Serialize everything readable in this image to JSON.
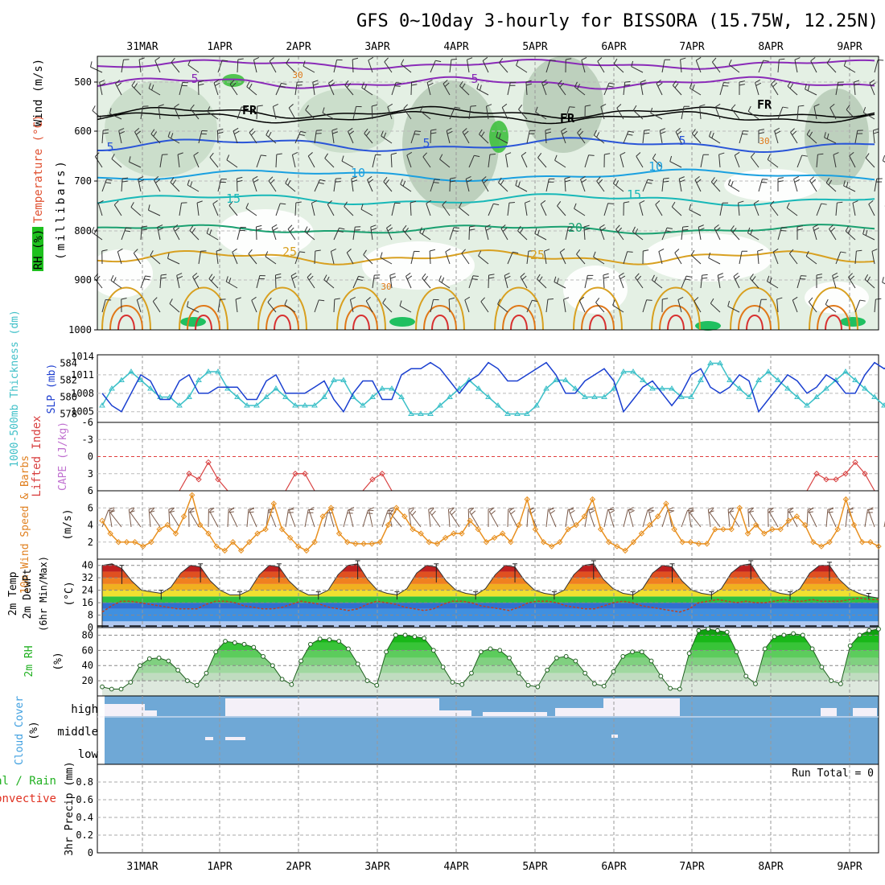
{
  "title": "GFS 0~10day 3-hourly for BISSORA (15.75W, 12.25N)",
  "days": [
    "31MAR",
    "1APR",
    "2APR",
    "3APR",
    "4APR",
    "5APR",
    "6APR",
    "7APR",
    "8APR",
    "9APR"
  ],
  "colors": {
    "purple": "#8a2bb8",
    "black": "#000000",
    "blue5": "#2a55d8",
    "blue10": "#1aa0e0",
    "teal15": "#18b8b8",
    "green20": "#1aa070",
    "orange25": "#d8a020",
    "orange30": "#e07818",
    "red35": "#d83030",
    "slp": "#1a3fd0",
    "thickness": "#3cc0c8",
    "lifted": "#d84040",
    "wind10m": "#e89020",
    "cloud": "#6fa8d6",
    "cloud_clear": "#f4f0f8",
    "rh_green": "#18c018"
  },
  "panels": {
    "upper": {
      "ylabel_wind": "Wind (m/s)",
      "ylabel_temp": "Temperature (°C)",
      "ylabel_rh": "RH (%)",
      "ylabel_mb": "(millibars)",
      "yticks": [
        "500",
        "600",
        "700",
        "800",
        "900",
        "1000"
      ],
      "contour_labels": [
        {
          "text": "5",
          "color": "purple"
        },
        {
          "text": "5",
          "color": "purple"
        },
        {
          "text": "FR",
          "color": "black"
        },
        {
          "text": "FR",
          "color": "black"
        },
        {
          "text": "FR",
          "color": "black"
        },
        {
          "text": "5",
          "color": "blue5"
        },
        {
          "text": "5",
          "color": "blue5"
        },
        {
          "text": "5",
          "color": "blue5"
        },
        {
          "text": "10",
          "color": "blue10"
        },
        {
          "text": "10",
          "color": "blue10"
        },
        {
          "text": "15",
          "color": "teal15"
        },
        {
          "text": "15",
          "color": "teal15"
        },
        {
          "text": "20",
          "color": "green20"
        },
        {
          "text": "25",
          "color": "orange25"
        },
        {
          "text": "25",
          "color": "orange25"
        },
        {
          "text": "30",
          "color": "orange30"
        },
        {
          "text": "30",
          "color": "orange30"
        },
        {
          "text": "30",
          "color": "orange30"
        }
      ]
    },
    "slp": {
      "ylabel_thickness": "1000-500mb Thickness (dm)",
      "ylabel_slp": "SLP (mb)",
      "left_ticks": [
        "584",
        "582",
        "580",
        "578"
      ],
      "right_ticks": [
        "1014",
        "1011",
        "1008",
        "1005"
      ]
    },
    "lifted": {
      "ylabel_li": "Lifted Index",
      "ylabel_cape": "CAPE (J/kg)",
      "ticks": [
        "-6",
        "-3",
        "0",
        "3",
        "6"
      ]
    },
    "wind10m": {
      "ylabel": "10m Wind Speed & Barbs",
      "unit": "(m/s)",
      "ticks": [
        "6",
        "4",
        "2"
      ]
    },
    "temp2m": {
      "ylabel": "2m Temp",
      "ylabel2": "2m DewPt",
      "ylabel3": "(6hr Min/Max)",
      "unit": "(°C)",
      "ticks": [
        "40",
        "32",
        "24",
        "16",
        "8",
        "0"
      ]
    },
    "rh2m": {
      "ylabel": "2m RH",
      "unit": "(%)",
      "ticks": [
        "80",
        "60",
        "40",
        "20"
      ]
    },
    "cloud": {
      "ylabel": "Cloud Cover",
      "unit": "(%)",
      "levels": [
        "high",
        "middle",
        "low"
      ]
    },
    "precip": {
      "ylabel_total": "Total / Rain",
      "ylabel_conv": "Convective",
      "ylabel_unit": "3hr Precip (mm)",
      "run_total": "Run Total = 0",
      "ticks": [
        "0.8",
        "0.6",
        "0.4",
        "0.2",
        "0"
      ]
    }
  },
  "chart_data": [
    {
      "type": "line",
      "title": "1000-500mb Thickness (dm) / SLP (mb)",
      "x": "3-hourly, 31MAR to 9APR",
      "series": [
        {
          "name": "SLP (mb)",
          "axis": "right",
          "ylim": [
            1003,
            1014
          ],
          "values": [
            1008,
            1006,
            1005,
            1008,
            1011,
            1010,
            1007,
            1007,
            1010,
            1011,
            1008,
            1008,
            1009,
            1009,
            1009,
            1007,
            1007,
            1010,
            1011,
            1008,
            1008,
            1008,
            1009,
            1010,
            1007,
            1005,
            1008,
            1010,
            1010,
            1007,
            1007,
            1011,
            1012,
            1012,
            1013,
            1012,
            1010,
            1008,
            1010,
            1011,
            1013,
            1012,
            1010,
            1010,
            1011,
            1012,
            1013,
            1011,
            1008,
            1008,
            1010,
            1011,
            1012,
            1010,
            1005,
            1007,
            1009,
            1010,
            1008,
            1006,
            1008,
            1011,
            1012,
            1009,
            1008,
            1009,
            1011,
            1010,
            1005,
            1007,
            1009,
            1011,
            1010,
            1008,
            1009,
            1011,
            1010,
            1008,
            1008,
            1011,
            1013,
            1012,
            1013
          ]
        },
        {
          "name": "1000-500mb Thickness (dm)",
          "axis": "left",
          "ylim": [
            577,
            585
          ],
          "values": [
            579,
            581,
            582,
            583,
            582,
            581,
            580,
            580,
            579,
            580,
            582,
            583,
            583,
            581,
            580,
            579,
            579,
            580,
            581,
            580,
            579,
            579,
            579,
            580,
            582,
            582,
            580,
            579,
            580,
            581,
            581,
            580,
            578,
            578,
            578,
            579,
            580,
            581,
            582,
            581,
            580,
            579,
            578,
            578,
            578,
            579,
            581,
            582,
            582,
            581,
            580,
            580,
            580,
            581,
            583,
            583,
            582,
            581,
            581,
            581,
            580,
            580,
            582,
            584,
            584,
            582,
            581,
            580,
            582,
            583,
            582,
            581,
            580,
            579,
            580,
            581,
            582,
            583,
            582,
            581,
            580,
            579,
            578,
            578
          ]
        }
      ]
    },
    {
      "type": "line",
      "title": "Lifted Index",
      "ylim": [
        6,
        -6
      ],
      "x": "3-hourly, 31MAR to 9APR",
      "series": [
        {
          "name": "Lifted Index",
          "values": [
            6,
            6,
            6,
            6,
            6,
            6,
            6,
            6,
            6,
            3,
            4,
            1,
            4,
            6,
            6,
            6,
            6,
            6,
            6,
            6,
            3,
            3,
            6,
            6,
            6,
            6,
            6,
            6,
            4,
            3,
            6,
            6,
            6,
            6,
            6,
            6,
            6,
            6,
            6,
            6,
            6,
            6,
            6,
            6,
            6,
            6,
            6,
            6,
            6,
            6,
            6,
            6,
            6,
            6,
            6,
            6,
            6,
            6,
            6,
            6,
            6,
            6,
            6,
            6,
            6,
            6,
            6,
            6,
            6,
            6,
            6,
            6,
            6,
            6,
            3,
            4,
            4,
            3,
            1,
            3,
            6,
            6,
            6
          ]
        }
      ]
    },
    {
      "type": "line",
      "title": "10m Wind Speed & Barbs (m/s)",
      "ylim": [
        0,
        8
      ],
      "x": "3-hourly, 31MAR to 9APR",
      "series": [
        {
          "name": "10m Wind Speed",
          "values": [
            4.5,
            3,
            2,
            2,
            2,
            1.5,
            2,
            3.5,
            4,
            3,
            5,
            7.5,
            4,
            3,
            1.5,
            1,
            2,
            1,
            2,
            3,
            3.5,
            6.5,
            3.5,
            2.5,
            1.5,
            1,
            2,
            5,
            6,
            3,
            2,
            1.8,
            1.8,
            1.8,
            2,
            4,
            6,
            5,
            3.5,
            3,
            2,
            1.8,
            2.5,
            3,
            3,
            4.5,
            3.5,
            2,
            2.5,
            3,
            2,
            4,
            7,
            3.5,
            2,
            1.5,
            2,
            3.5,
            4,
            5,
            7,
            3.5,
            2,
            1.5,
            1,
            2,
            3,
            4,
            5,
            6.5,
            3.5,
            2,
            2,
            1.8,
            1.8,
            3.5,
            3.5,
            3.5,
            6,
            3,
            4,
            3,
            3.5,
            3.5,
            4.5,
            5,
            4,
            2,
            1.5,
            2,
            3.5,
            7,
            4,
            2,
            2,
            1.5
          ]
        }
      ]
    },
    {
      "type": "area",
      "title": "2m Temp / 2m DewPt (°C)",
      "ylim": [
        0,
        44
      ],
      "x": "3-hourly, 31MAR to 9APR",
      "series": [
        {
          "name": "2m Temp",
          "values": [
            40,
            41,
            38,
            30,
            24,
            23,
            22,
            26,
            35,
            40,
            39,
            30,
            24,
            21,
            21,
            24,
            34,
            40,
            39,
            30,
            24,
            21,
            21,
            24,
            34,
            40,
            41,
            31,
            24,
            22,
            21,
            25,
            35,
            40,
            39,
            30,
            24,
            22,
            21,
            25,
            34,
            40,
            39,
            30,
            24,
            22,
            21,
            24,
            34,
            40,
            41,
            31,
            25,
            22,
            21,
            25,
            35,
            40,
            39,
            30,
            24,
            22,
            21,
            25,
            35,
            40,
            41,
            31,
            24,
            22,
            21,
            25,
            35,
            40,
            40,
            31,
            25,
            22,
            20,
            19
          ]
        },
        {
          "name": "2m DewPt",
          "values": [
            10,
            14,
            17,
            17,
            16,
            15,
            14,
            13,
            12,
            12,
            12,
            15,
            17,
            17,
            16,
            14,
            13,
            12,
            12,
            13,
            15,
            17,
            16,
            15,
            13,
            12,
            11,
            12,
            15,
            17,
            16,
            15,
            13,
            12,
            11,
            12,
            15,
            17,
            17,
            16,
            14,
            13,
            12,
            11,
            13,
            16,
            17,
            17,
            16,
            14,
            13,
            12,
            12,
            14,
            16,
            17,
            16,
            14,
            13,
            12,
            11,
            10,
            12,
            16,
            17,
            18,
            17,
            16,
            17,
            16,
            16,
            17,
            18,
            17,
            17,
            18,
            17,
            17,
            17,
            18,
            19,
            18,
            18
          ]
        }
      ]
    },
    {
      "type": "area",
      "title": "2m RH (%)",
      "ylim": [
        0,
        90
      ],
      "x": "3-hourly, 31MAR to 9APR",
      "series": [
        {
          "name": "2m RH",
          "values": [
            12,
            9,
            9,
            18,
            40,
            49,
            50,
            46,
            34,
            20,
            14,
            30,
            58,
            72,
            70,
            68,
            64,
            52,
            40,
            22,
            15,
            46,
            68,
            75,
            74,
            72,
            62,
            42,
            20,
            14,
            58,
            80,
            80,
            78,
            76,
            60,
            38,
            18,
            15,
            30,
            58,
            62,
            60,
            50,
            30,
            14,
            12,
            34,
            50,
            52,
            46,
            30,
            16,
            13,
            32,
            52,
            58,
            58,
            46,
            26,
            10,
            9,
            56,
            86,
            88,
            86,
            84,
            58,
            26,
            16,
            62,
            78,
            80,
            82,
            80,
            62,
            38,
            20,
            16,
            66,
            80,
            86,
            88
          ]
        }
      ]
    }
  ]
}
